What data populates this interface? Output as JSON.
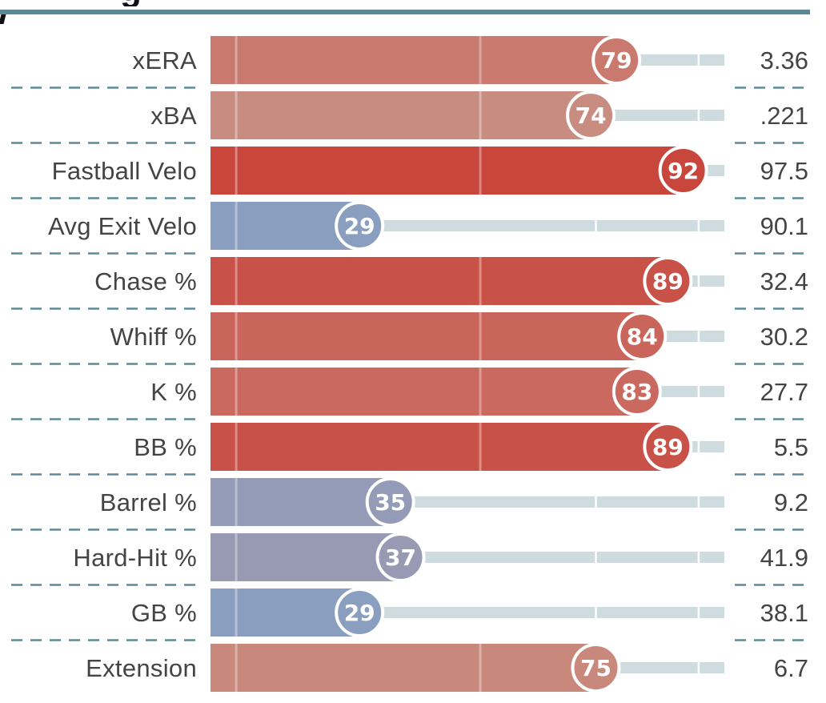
{
  "chart_data": {
    "type": "bar",
    "title": "",
    "xlim": [
      0,
      100
    ],
    "grid": true,
    "colors": {
      "header_rule": "#5b8a96",
      "track": "#cfdcdf",
      "divider": "#5b8a96",
      "text": "#444444",
      "scale_high": "#c9463d",
      "scale_mid": "#c98c80",
      "scale_low": "#8a9ebf"
    },
    "rows": [
      {
        "metric": "xERA",
        "percentile": 79,
        "value": "3.36"
      },
      {
        "metric": "xBA",
        "percentile": 74,
        "value": ".221"
      },
      {
        "metric": "Fastball Velo",
        "percentile": 92,
        "value": "97.5"
      },
      {
        "metric": "Avg Exit Velo",
        "percentile": 29,
        "value": "90.1"
      },
      {
        "metric": "Chase %",
        "percentile": 89,
        "value": "32.4"
      },
      {
        "metric": "Whiff %",
        "percentile": 84,
        "value": "30.2"
      },
      {
        "metric": "K %",
        "percentile": 83,
        "value": "27.7"
      },
      {
        "metric": "BB %",
        "percentile": 89,
        "value": "5.5"
      },
      {
        "metric": "Barrel %",
        "percentile": 35,
        "value": "9.2"
      },
      {
        "metric": "Hard-Hit %",
        "percentile": 37,
        "value": "41.9"
      },
      {
        "metric": "GB %",
        "percentile": 29,
        "value": "38.1"
      },
      {
        "metric": "Extension",
        "percentile": 75,
        "value": "6.7"
      }
    ]
  }
}
